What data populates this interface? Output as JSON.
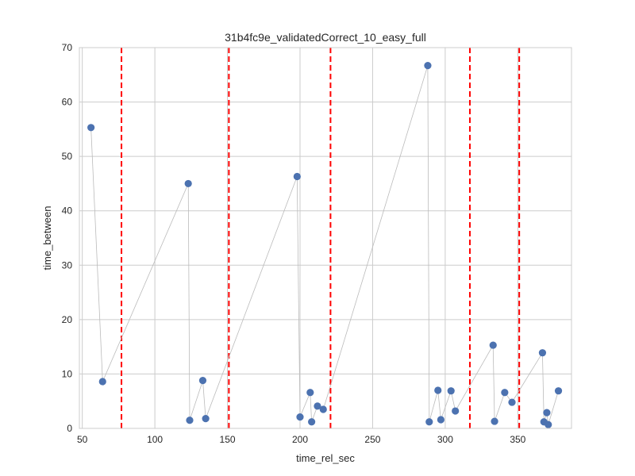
{
  "chart_data": {
    "type": "scatter",
    "title": "31b4fc9e_validatedCorrect_10_easy_full",
    "xlabel": "time_rel_sec",
    "ylabel": "time_between",
    "xlim": [
      48,
      387
    ],
    "ylim": [
      0,
      70
    ],
    "xticks": [
      50,
      100,
      150,
      200,
      250,
      300,
      350
    ],
    "yticks": [
      0,
      10,
      20,
      30,
      40,
      50,
      60,
      70
    ],
    "grid": true,
    "style": "seaborn whitegrid",
    "series": [
      {
        "connected": true,
        "marker_color": "#4c72b0",
        "line_color": "#bbbbbb",
        "points": [
          {
            "x": 56,
            "y": 55.3
          },
          {
            "x": 64,
            "y": 8.6
          },
          {
            "x": 123,
            "y": 45.0
          },
          {
            "x": 124,
            "y": 1.5
          },
          {
            "x": 133,
            "y": 8.8
          },
          {
            "x": 135,
            "y": 1.8
          },
          {
            "x": 198,
            "y": 46.3
          },
          {
            "x": 200,
            "y": 2.1
          },
          {
            "x": 207,
            "y": 6.6
          },
          {
            "x": 208,
            "y": 1.2
          },
          {
            "x": 212,
            "y": 4.1
          },
          {
            "x": 216,
            "y": 3.5
          },
          {
            "x": 288,
            "y": 66.7
          },
          {
            "x": 289,
            "y": 1.2
          },
          {
            "x": 295,
            "y": 7.0
          },
          {
            "x": 297,
            "y": 1.6
          },
          {
            "x": 304,
            "y": 6.9
          },
          {
            "x": 307,
            "y": 3.2
          },
          {
            "x": 333,
            "y": 15.3
          },
          {
            "x": 334,
            "y": 1.3
          },
          {
            "x": 341,
            "y": 6.6
          },
          {
            "x": 346,
            "y": 4.8
          },
          {
            "x": 367,
            "y": 13.9
          },
          {
            "x": 368,
            "y": 1.2
          },
          {
            "x": 370,
            "y": 2.9
          },
          {
            "x": 371,
            "y": 0.7
          },
          {
            "x": 378,
            "y": 6.9
          }
        ]
      }
    ],
    "vlines": {
      "x": [
        77,
        151,
        221,
        317,
        351
      ],
      "color": "#ff0000",
      "style": "dashed"
    }
  }
}
